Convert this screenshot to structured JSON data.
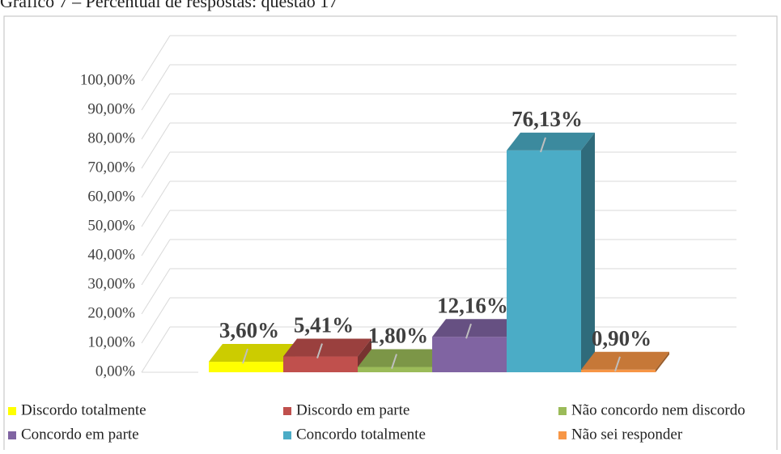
{
  "chart_data": {
    "type": "bar3d",
    "title": "Gráfico 7 – Percentual de respostas: questão 17",
    "ylim": [
      0,
      100
    ],
    "yticks": [
      {
        "value": 0,
        "label": "0,00%"
      },
      {
        "value": 10,
        "label": "10,00%"
      },
      {
        "value": 20,
        "label": "20,00%"
      },
      {
        "value": 30,
        "label": "30,00%"
      },
      {
        "value": 40,
        "label": "40,00%"
      },
      {
        "value": 50,
        "label": "50,00%"
      },
      {
        "value": 60,
        "label": "60,00%"
      },
      {
        "value": 70,
        "label": "70,00%"
      },
      {
        "value": 80,
        "label": "80,00%"
      },
      {
        "value": 90,
        "label": "90,00%"
      },
      {
        "value": 100,
        "label": "100,00%"
      }
    ],
    "grid": true,
    "series": [
      {
        "name": "Discordo totalmente",
        "color": "#ffff00",
        "values": [
          3.6
        ],
        "value_labels": [
          "3,60%"
        ]
      },
      {
        "name": "Discordo em parte",
        "color": "#c0504d",
        "values": [
          5.41
        ],
        "value_labels": [
          "5,41%"
        ]
      },
      {
        "name": "Não concordo nem discordo",
        "color": "#9bbb59",
        "values": [
          1.8
        ],
        "value_labels": [
          "1,80%"
        ]
      },
      {
        "name": "Concordo em parte",
        "color": "#8064a2",
        "values": [
          12.16
        ],
        "value_labels": [
          "12,16%"
        ]
      },
      {
        "name": "Concordo totalmente",
        "color": "#4bacc6",
        "values": [
          76.13
        ],
        "value_labels": [
          "76,13%"
        ]
      },
      {
        "name": "Não sei responder",
        "color": "#f79646",
        "values": [
          0.9
        ],
        "value_labels": [
          "0,90%"
        ]
      }
    ]
  }
}
